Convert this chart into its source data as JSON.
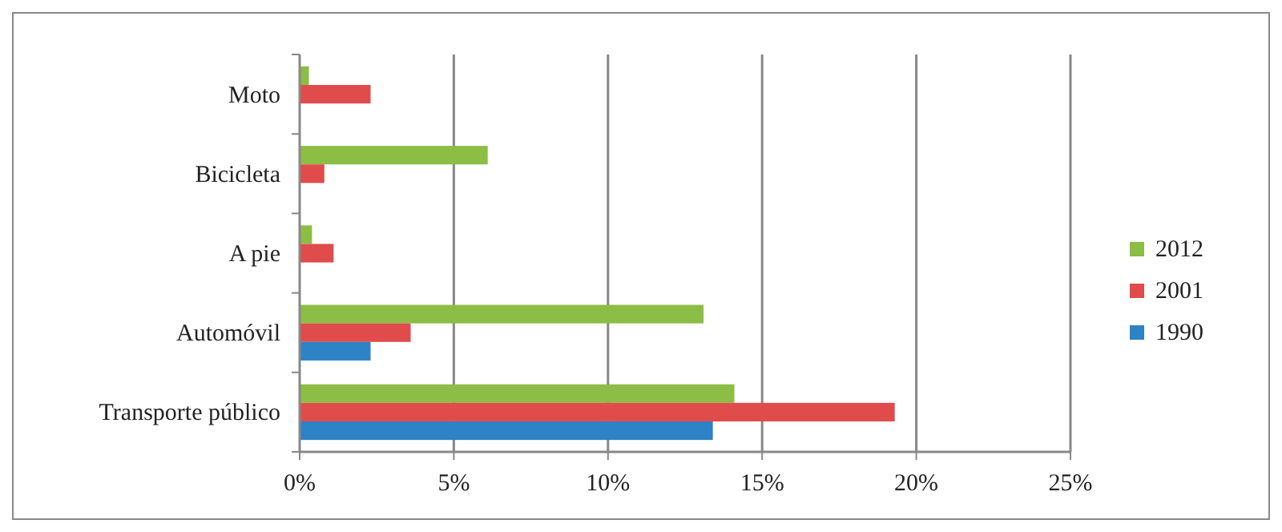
{
  "chart_data": {
    "type": "bar",
    "orientation": "horizontal",
    "categories": [
      "Moto",
      "Bicicleta",
      "A pie",
      "Automóvil",
      "Transporte público"
    ],
    "series": [
      {
        "name": "2012",
        "color": "#8cbd45",
        "values": [
          0.3,
          6.1,
          0.4,
          13.1,
          14.1
        ]
      },
      {
        "name": "2001",
        "color": "#e04b4b",
        "values": [
          2.3,
          0.8,
          1.1,
          3.6,
          19.3
        ]
      },
      {
        "name": "1990",
        "color": "#2e82c6",
        "values": [
          null,
          null,
          null,
          2.3,
          13.4
        ]
      }
    ],
    "xlim": [
      0,
      25
    ],
    "xticks": [
      {
        "value": 0,
        "label": "0%"
      },
      {
        "value": 5,
        "label": "5%"
      },
      {
        "value": 10,
        "label": "10%"
      },
      {
        "value": 15,
        "label": "15%"
      },
      {
        "value": 20,
        "label": "20%"
      },
      {
        "value": 25,
        "label": "25%"
      }
    ],
    "grid": "x",
    "legend": "right"
  }
}
